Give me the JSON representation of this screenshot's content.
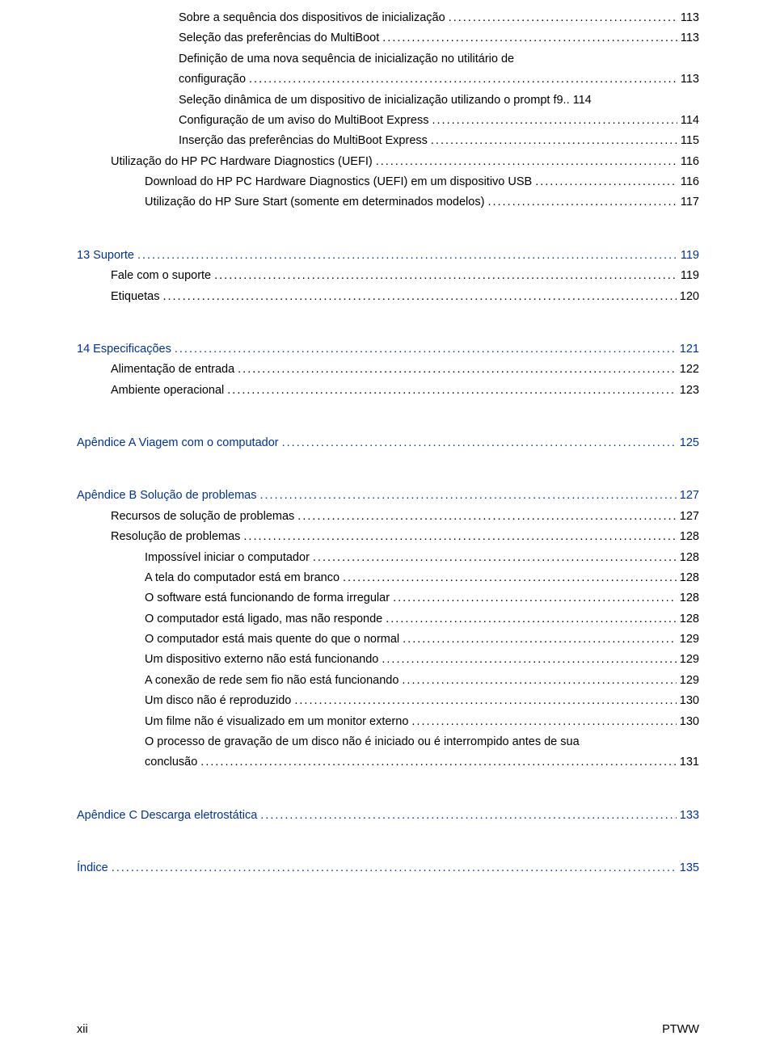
{
  "colors": {
    "text": "#000000",
    "chapter": "#003399",
    "background": "#ffffff"
  },
  "typography": {
    "font_family": "Arial",
    "font_size_pt": 11,
    "line_height": 1.75
  },
  "entries": [
    {
      "label": "Sobre a sequência dos dispositivos de inicialização",
      "page": "113",
      "indent": 3,
      "chapter": false
    },
    {
      "label": "Seleção das preferências do MultiBoot",
      "page": "113",
      "indent": 3,
      "chapter": false
    },
    {
      "label": "Definição de uma nova sequência de inicialização no utilitário de",
      "page": "",
      "indent": 3,
      "chapter": false,
      "nowrap": true,
      "continuation": "configuração",
      "cont_page": "113"
    },
    {
      "label": "Seleção dinâmica de um dispositivo de inicialização utilizando o prompt f9",
      "page": "114",
      "indent": 3,
      "chapter": false,
      "sep": " .."
    },
    {
      "label": "Configuração de um aviso do MultiBoot Express",
      "page": "114",
      "indent": 3,
      "chapter": false
    },
    {
      "label": "Inserção das preferências do MultiBoot Express",
      "page": "115",
      "indent": 3,
      "chapter": false
    },
    {
      "label": "Utilização do HP PC Hardware Diagnostics (UEFI)",
      "page": "116",
      "indent": 1,
      "chapter": false
    },
    {
      "label": "Download do HP PC Hardware Diagnostics (UEFI) em um dispositivo USB",
      "page": "116",
      "indent": 2,
      "chapter": false
    },
    {
      "label": "Utilização do HP Sure Start (somente em determinados modelos)",
      "page": "117",
      "indent": 2,
      "chapter": false
    }
  ],
  "ch13": {
    "title": "13  Suporte",
    "page": "119",
    "items": [
      {
        "label": "Fale com o suporte",
        "page": "119",
        "indent": 1
      },
      {
        "label": "Etiquetas",
        "page": "120",
        "indent": 1
      }
    ]
  },
  "ch14": {
    "title": "14  Especificações",
    "page": "121",
    "items": [
      {
        "label": "Alimentação de entrada",
        "page": "122",
        "indent": 1
      },
      {
        "label": "Ambiente operacional",
        "page": "123",
        "indent": 1
      }
    ]
  },
  "apA": {
    "title": "Apêndice A  Viagem com o computador",
    "page": "125"
  },
  "apB": {
    "title": "Apêndice B  Solução de problemas",
    "page": "127",
    "items": [
      {
        "label": "Recursos de solução de problemas",
        "page": "127",
        "indent": 1
      },
      {
        "label": "Resolução de problemas",
        "page": "128",
        "indent": 1
      },
      {
        "label": "Impossível iniciar o computador",
        "page": "128",
        "indent": 2
      },
      {
        "label": "A tela do computador está em branco",
        "page": "128",
        "indent": 2
      },
      {
        "label": "O software está funcionando de forma irregular",
        "page": "128",
        "indent": 2
      },
      {
        "label": "O computador está ligado, mas não responde",
        "page": "128",
        "indent": 2
      },
      {
        "label": "O computador está mais quente do que o normal",
        "page": "129",
        "indent": 2
      },
      {
        "label": "Um dispositivo externo não está funcionando",
        "page": "129",
        "indent": 2
      },
      {
        "label": "A conexão de rede sem fio não está funcionando",
        "page": "129",
        "indent": 2
      },
      {
        "label": "Um disco não é reproduzido",
        "page": "130",
        "indent": 2
      },
      {
        "label": "Um filme não é visualizado em um monitor externo",
        "page": "130",
        "indent": 2
      },
      {
        "label": "O processo de gravação de um disco não é iniciado ou é interrompido antes de sua",
        "page": "",
        "indent": 2,
        "continuation": "conclusão",
        "cont_page": "131"
      }
    ]
  },
  "apC": {
    "title": "Apêndice C  Descarga eletrostática",
    "page": "133"
  },
  "index": {
    "title": "Índice",
    "page": "135"
  },
  "footer": {
    "left": "xii",
    "right": "PTWW"
  }
}
